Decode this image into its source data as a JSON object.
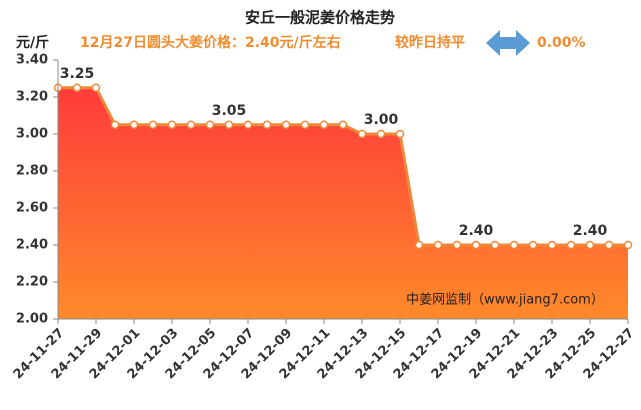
{
  "chart_data": {
    "type": "area",
    "title": "安丘一般泥姜价格走势",
    "y_unit": "元/斤",
    "subtitle": "12月27日圆头大姜价格：2.40元/斤左右",
    "change_text": "较昨日持平",
    "change_value": "0.00%",
    "watermark": "中姜网监制（www.jiang7.com）",
    "categories": [
      "24-11-27",
      null,
      "24-11-29",
      null,
      "24-12-01",
      null,
      "24-12-03",
      null,
      "24-12-05",
      null,
      "24-12-07",
      null,
      "24-12-09",
      null,
      "24-12-11",
      null,
      "24-12-13",
      null,
      "24-12-15",
      null,
      "24-12-17",
      null,
      "24-12-19",
      null,
      "24-12-21",
      null,
      "24-12-23",
      null,
      "24-12-25",
      null,
      "24-12-27"
    ],
    "values": [
      3.25,
      3.25,
      3.25,
      3.05,
      3.05,
      3.05,
      3.05,
      3.05,
      3.05,
      3.05,
      3.05,
      3.05,
      3.05,
      3.05,
      3.05,
      3.05,
      3.0,
      3.0,
      3.0,
      2.4,
      2.4,
      2.4,
      2.4,
      2.4,
      2.4,
      2.4,
      2.4,
      2.4,
      2.4,
      2.4,
      2.4
    ],
    "value_labels": [
      null,
      "3.25",
      null,
      null,
      null,
      null,
      null,
      null,
      null,
      "3.05",
      null,
      null,
      null,
      null,
      null,
      null,
      null,
      "3.00",
      null,
      null,
      null,
      null,
      "2.40",
      null,
      null,
      null,
      null,
      null,
      "2.40",
      null,
      null
    ],
    "color": "#f0883a",
    "area_colors": [
      "#ff3b3b",
      "#ff8a2a"
    ],
    "ylim": [
      2.0,
      3.4
    ],
    "yticks": [
      {
        "value": 2.0,
        "label": "2.00"
      },
      {
        "value": 2.2,
        "label": "2.20"
      },
      {
        "value": 2.4,
        "label": "2.40"
      },
      {
        "value": 2.6,
        "label": "2.60"
      },
      {
        "value": 2.8,
        "label": "2.80"
      },
      {
        "value": 3.0,
        "label": "3.00"
      },
      {
        "value": 3.2,
        "label": "3.20"
      },
      {
        "value": 3.4,
        "label": "3.40"
      }
    ],
    "grid": false
  }
}
